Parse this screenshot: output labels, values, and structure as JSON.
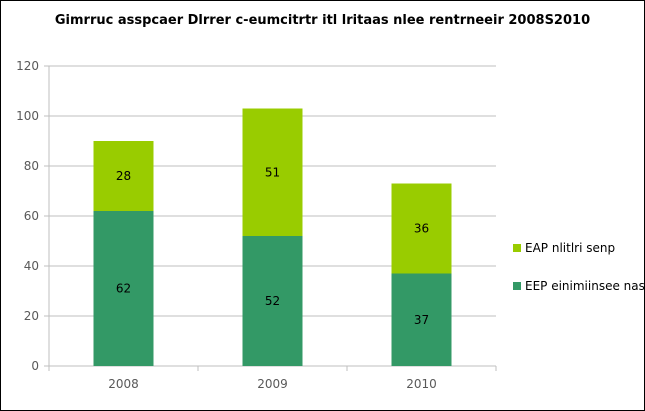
{
  "chart_data": {
    "type": "bar",
    "stacked": true,
    "title": "Gimrruc asspcaer Dlrrer c-eumcitrtr itl lritaas nlee rentrneeir 2008S2010",
    "categories": [
      "2008",
      "2009",
      "2010"
    ],
    "series": [
      {
        "name": "EEP einimiinsee nasi",
        "values": [
          62,
          52,
          37
        ],
        "color": "#339966"
      },
      {
        "name": "EAP nlitlri senp",
        "values": [
          28,
          51,
          36
        ],
        "color": "#99CC00"
      }
    ],
    "ylim": [
      0,
      120
    ],
    "yticks": [
      0,
      20,
      40,
      60,
      80,
      100,
      120
    ],
    "grid": true,
    "legend": "right",
    "data_labels": true
  }
}
